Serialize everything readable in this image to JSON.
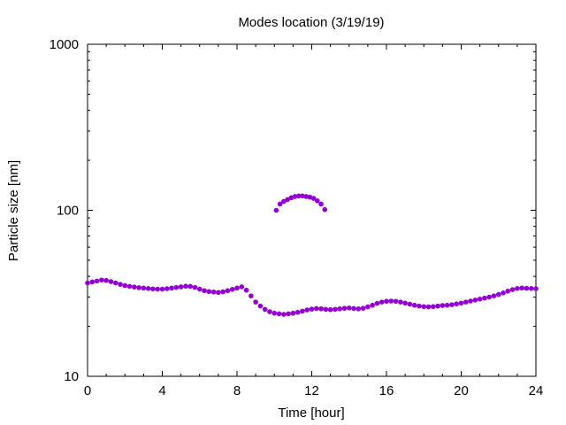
{
  "chart_data": {
    "type": "scatter",
    "title": "Modes location (3/19/19)",
    "xlabel": "Time [hour]",
    "ylabel": "Particle size [nm]",
    "xlim": [
      0,
      24
    ],
    "ylim": [
      10,
      1000
    ],
    "yscale": "log",
    "grid": false,
    "legend": "none",
    "marker_color": "#9400d3",
    "x_ticks": [
      "0",
      "4",
      "8",
      "12",
      "16",
      "20",
      "24"
    ],
    "y_ticks": [
      "10",
      "100",
      "1000"
    ],
    "series": [
      {
        "x": [
          0.0,
          0.25,
          0.5,
          0.75,
          1.0,
          1.25,
          1.5,
          1.75,
          2.0,
          2.25,
          2.5,
          2.75,
          3.0,
          3.25,
          3.5,
          3.75,
          4.0,
          4.25,
          4.5,
          4.75,
          5.0,
          5.25,
          5.5,
          5.75,
          6.0,
          6.25,
          6.5,
          6.75,
          7.0,
          7.25,
          7.5,
          7.75,
          8.0,
          8.25,
          8.5,
          8.75,
          9.0,
          9.25,
          9.5,
          9.75,
          10.0,
          10.25,
          10.5,
          10.75,
          11.0,
          11.25,
          11.5,
          11.75,
          12.0,
          12.25,
          12.5,
          12.75,
          13.0,
          13.25,
          13.5,
          13.75,
          14.0,
          14.25,
          14.5,
          14.75,
          15.0,
          15.25,
          15.5,
          15.75,
          16.0,
          16.25,
          16.5,
          16.75,
          17.0,
          17.25,
          17.5,
          17.75,
          18.0,
          18.25,
          18.5,
          18.75,
          19.0,
          19.25,
          19.5,
          19.75,
          20.0,
          20.25,
          20.5,
          20.75,
          21.0,
          21.25,
          21.5,
          21.75,
          22.0,
          22.25,
          22.5,
          22.75,
          23.0,
          23.25,
          23.5,
          23.75,
          24.0
        ],
        "y": [
          36.5,
          37,
          37.5,
          38,
          37.8,
          37.2,
          36.5,
          35.8,
          35.2,
          34.8,
          34.5,
          34.2,
          34,
          33.8,
          33.6,
          33.5,
          33.5,
          33.7,
          34,
          34.3,
          34.6,
          34.9,
          34.8,
          34.3,
          33.5,
          32.8,
          32.4,
          32.2,
          32,
          32.3,
          32.8,
          33.4,
          34,
          34.6,
          33,
          30.5,
          28,
          26.5,
          25.3,
          24.5,
          24,
          23.8,
          23.6,
          23.8,
          24,
          24.3,
          24.7,
          25.1,
          25.4,
          25.6,
          25.5,
          25.3,
          25.2,
          25.3,
          25.5,
          25.7,
          25.8,
          25.6,
          25.5,
          25.7,
          26.2,
          26.8,
          27.5,
          28,
          28.3,
          28.4,
          28.3,
          28,
          27.6,
          27.2,
          26.8,
          26.5,
          26.3,
          26.2,
          26.3,
          26.5,
          26.7,
          26.8,
          27,
          27.3,
          27.6,
          28,
          28.4,
          28.8,
          29.2,
          29.6,
          30,
          30.5,
          31.1,
          31.8,
          32.6,
          33.3,
          33.8,
          34,
          33.9,
          33.8,
          33.7
        ]
      },
      {
        "x": [
          10.1,
          10.3,
          10.5,
          10.7,
          10.9,
          11.1,
          11.3,
          11.5,
          11.7,
          11.9,
          12.1,
          12.3,
          12.5,
          12.7
        ],
        "y": [
          100,
          109,
          113,
          116,
          119,
          121,
          122,
          122,
          121,
          120,
          118,
          114,
          109,
          101
        ]
      }
    ]
  }
}
